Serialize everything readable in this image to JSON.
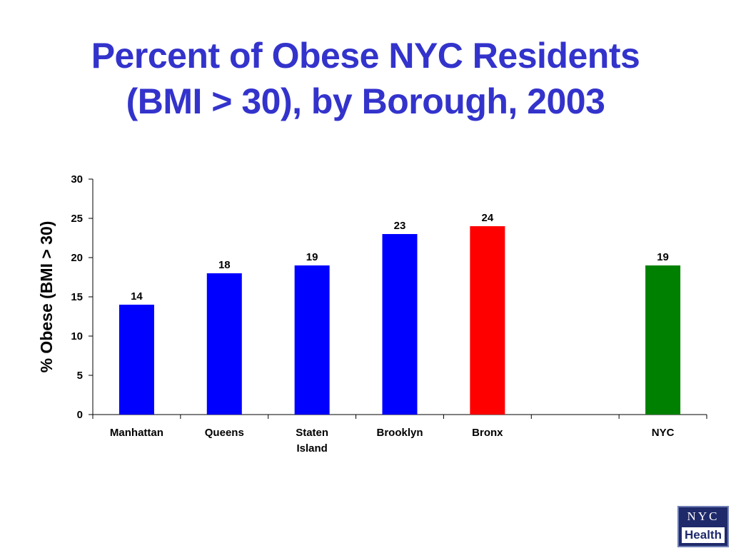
{
  "title": {
    "line1": "Percent of Obese NYC Residents",
    "line2": "(BMI > 30), by Borough, 2003"
  },
  "logo": {
    "line1": "NYC",
    "line2": "Health"
  },
  "chart_data": {
    "type": "bar",
    "categories": [
      "Manhattan",
      "Queens",
      "Staten Island",
      "Brooklyn",
      "Bronx",
      "",
      "NYC"
    ],
    "category_lines": [
      [
        "Manhattan"
      ],
      [
        "Queens"
      ],
      [
        "Staten",
        "Island"
      ],
      [
        "Brooklyn"
      ],
      [
        "Bronx"
      ],
      [],
      [
        "NYC"
      ]
    ],
    "values": [
      14,
      18,
      19,
      23,
      24,
      null,
      19
    ],
    "data_labels": [
      "14",
      "18",
      "19",
      "23",
      "24",
      "",
      "19"
    ],
    "bar_colors": [
      "#0000ff",
      "#0000ff",
      "#0000ff",
      "#0000ff",
      "#ff0000",
      null,
      "#008000"
    ],
    "ylabel": "% Obese (BMI > 30)",
    "xlabel": "",
    "ylim": [
      0,
      30
    ],
    "yticks": [
      0,
      5,
      10,
      15,
      20,
      25,
      30
    ],
    "grid": false,
    "legend": "none"
  }
}
